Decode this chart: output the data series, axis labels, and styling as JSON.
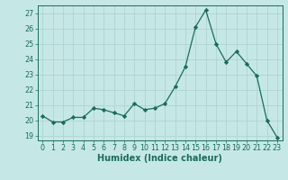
{
  "x": [
    0,
    1,
    2,
    3,
    4,
    5,
    6,
    7,
    8,
    9,
    10,
    11,
    12,
    13,
    14,
    15,
    16,
    17,
    18,
    19,
    20,
    21,
    22,
    23
  ],
  "y": [
    20.3,
    19.9,
    19.9,
    20.2,
    20.2,
    20.8,
    20.7,
    20.5,
    20.3,
    21.1,
    20.7,
    20.8,
    21.1,
    22.2,
    23.5,
    26.1,
    27.2,
    25.0,
    23.8,
    24.5,
    23.7,
    22.9,
    20.0,
    18.9
  ],
  "line_color": "#1a6b5a",
  "marker": "D",
  "marker_size": 2.2,
  "bg_color": "#c5e8e6",
  "grid_color": "#aacfcd",
  "xlabel": "Humidex (Indice chaleur)",
  "xlim": [
    -0.5,
    23.5
  ],
  "ylim": [
    18.7,
    27.5
  ],
  "yticks": [
    19,
    20,
    21,
    22,
    23,
    24,
    25,
    26,
    27
  ],
  "xticks": [
    0,
    1,
    2,
    3,
    4,
    5,
    6,
    7,
    8,
    9,
    10,
    11,
    12,
    13,
    14,
    15,
    16,
    17,
    18,
    19,
    20,
    21,
    22,
    23
  ],
  "tick_color": "#1a6b5a",
  "tick_fontsize": 5.8,
  "xlabel_fontsize": 7.0,
  "axes_color": "#1a6b5a"
}
